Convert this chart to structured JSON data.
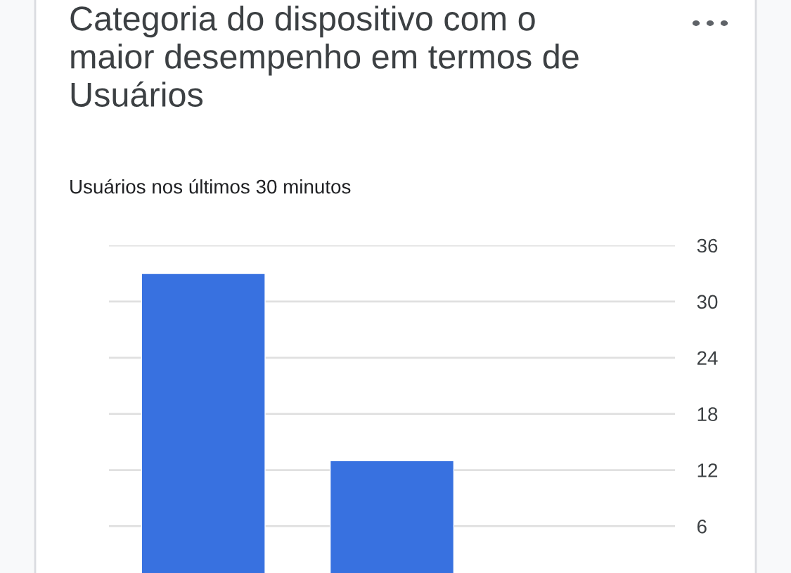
{
  "chart_data": {
    "type": "bar",
    "title": "Categoria do dispositivo com o\nmaior desempenho em termos de\nUsuários",
    "subtitle": "Usuários nos últimos 30 minutos",
    "categories": [
      null,
      null,
      null
    ],
    "values": [
      33,
      13,
      null
    ],
    "color": "#3871e0",
    "ylim": [
      1,
      36
    ],
    "yticks": [
      6,
      12,
      18,
      24,
      30,
      36
    ],
    "grid": "y",
    "tick_labels": "y"
  }
}
